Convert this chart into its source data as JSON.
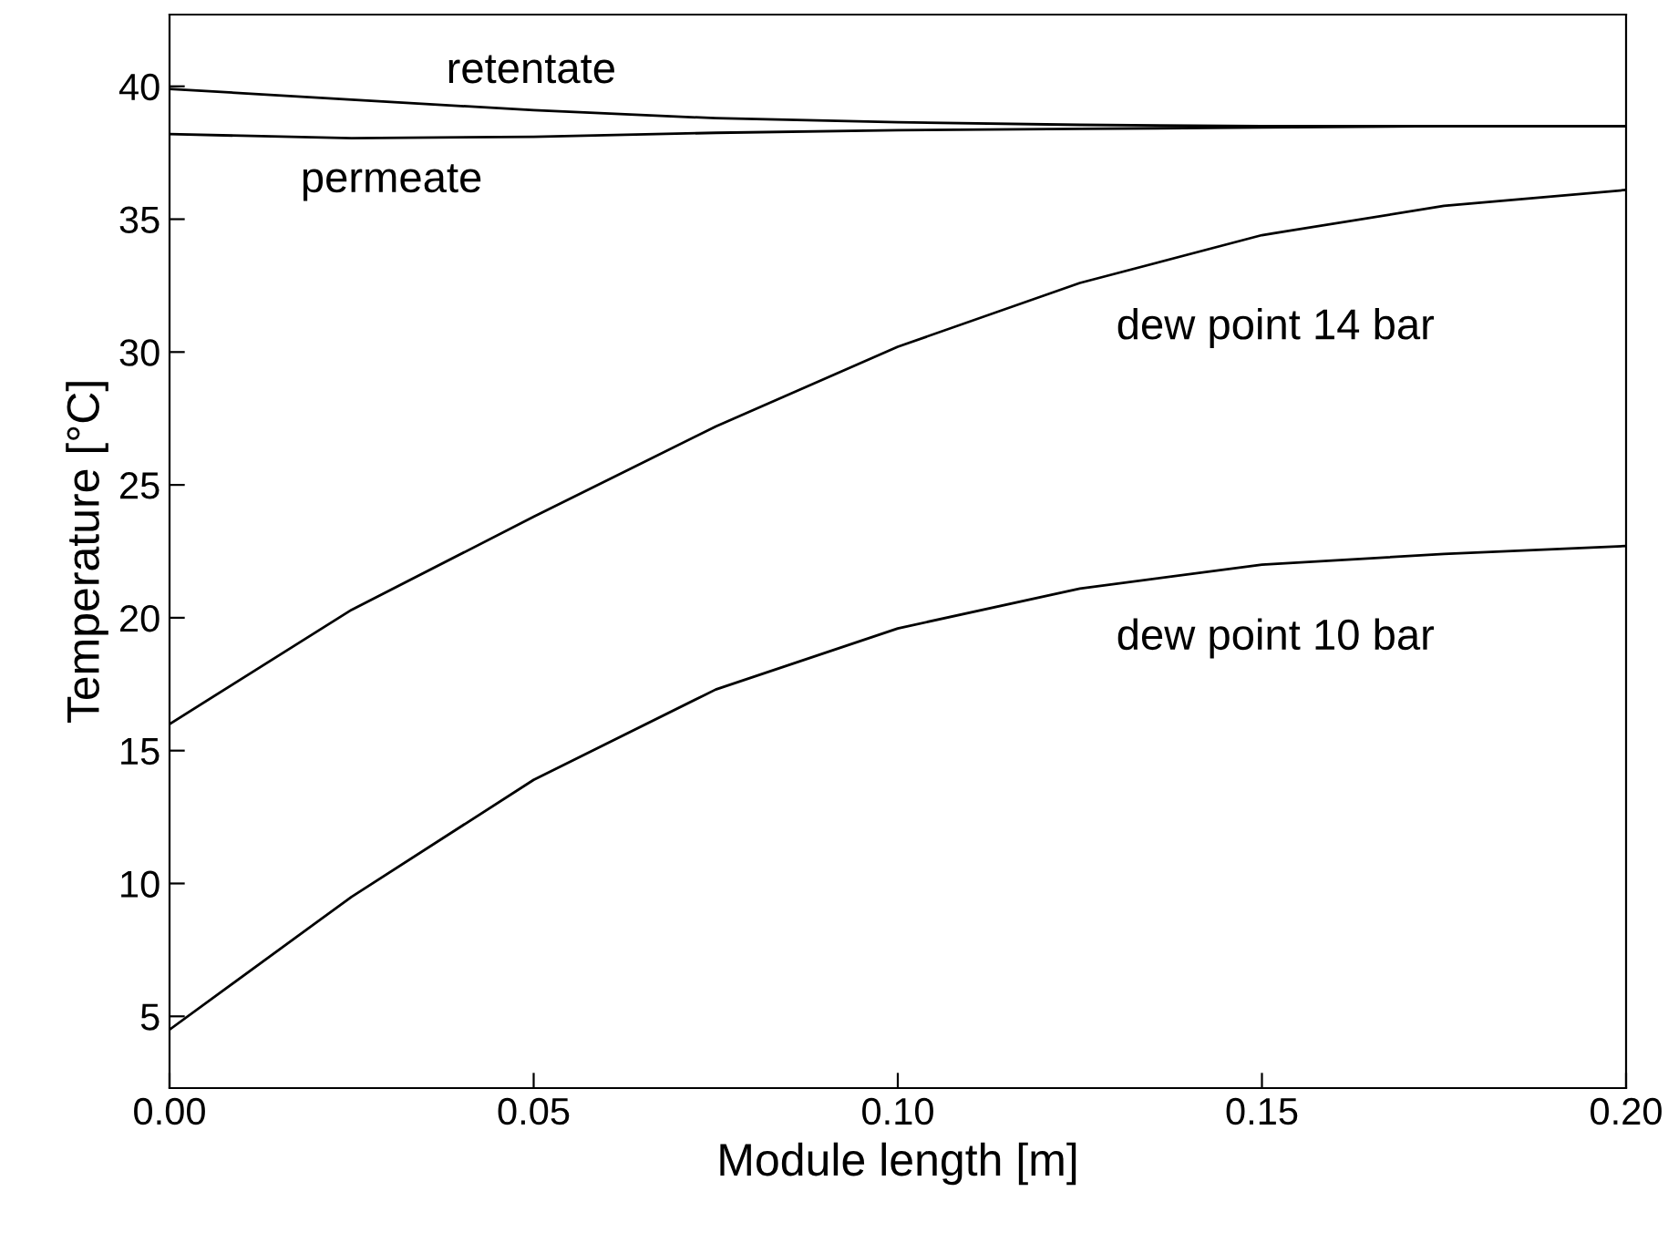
{
  "chart_data": {
    "type": "line",
    "xlabel": "Module length [m]",
    "ylabel": "Temperature [°C]",
    "xlim": [
      0,
      0.2
    ],
    "ylim": [
      2.3,
      42.7
    ],
    "xticks": [
      {
        "value": 0,
        "label": "0.00"
      },
      {
        "value": 0.05,
        "label": "0.05"
      },
      {
        "value": 0.1,
        "label": "0.10"
      },
      {
        "value": 0.15,
        "label": "0.15"
      },
      {
        "value": 0.2,
        "label": "0.20"
      }
    ],
    "yticks": [
      5,
      10,
      15,
      20,
      25,
      30,
      35,
      40
    ],
    "grid": false,
    "legend": false,
    "marker": "none",
    "line_style": "solid",
    "x": [
      0,
      0.025,
      0.05,
      0.075,
      0.1,
      0.125,
      0.15,
      0.175,
      0.2
    ],
    "series": [
      {
        "name": "retentate",
        "color": "#000000",
        "values": [
          39.9,
          39.5,
          39.1,
          38.8,
          38.65,
          38.55,
          38.5,
          38.5,
          38.5
        ]
      },
      {
        "name": "permeate",
        "color": "#000000",
        "values": [
          38.2,
          38.05,
          38.1,
          38.25,
          38.35,
          38.4,
          38.45,
          38.5,
          38.5
        ]
      },
      {
        "name": "dew point 14 bar",
        "color": "#000000",
        "values": [
          16.0,
          20.3,
          23.8,
          27.2,
          30.2,
          32.6,
          34.4,
          35.5,
          36.1
        ]
      },
      {
        "name": "dew point 10 bar",
        "color": "#000000",
        "values": [
          4.5,
          9.5,
          13.9,
          17.3,
          19.6,
          21.1,
          22.0,
          22.4,
          22.7
        ]
      }
    ]
  }
}
